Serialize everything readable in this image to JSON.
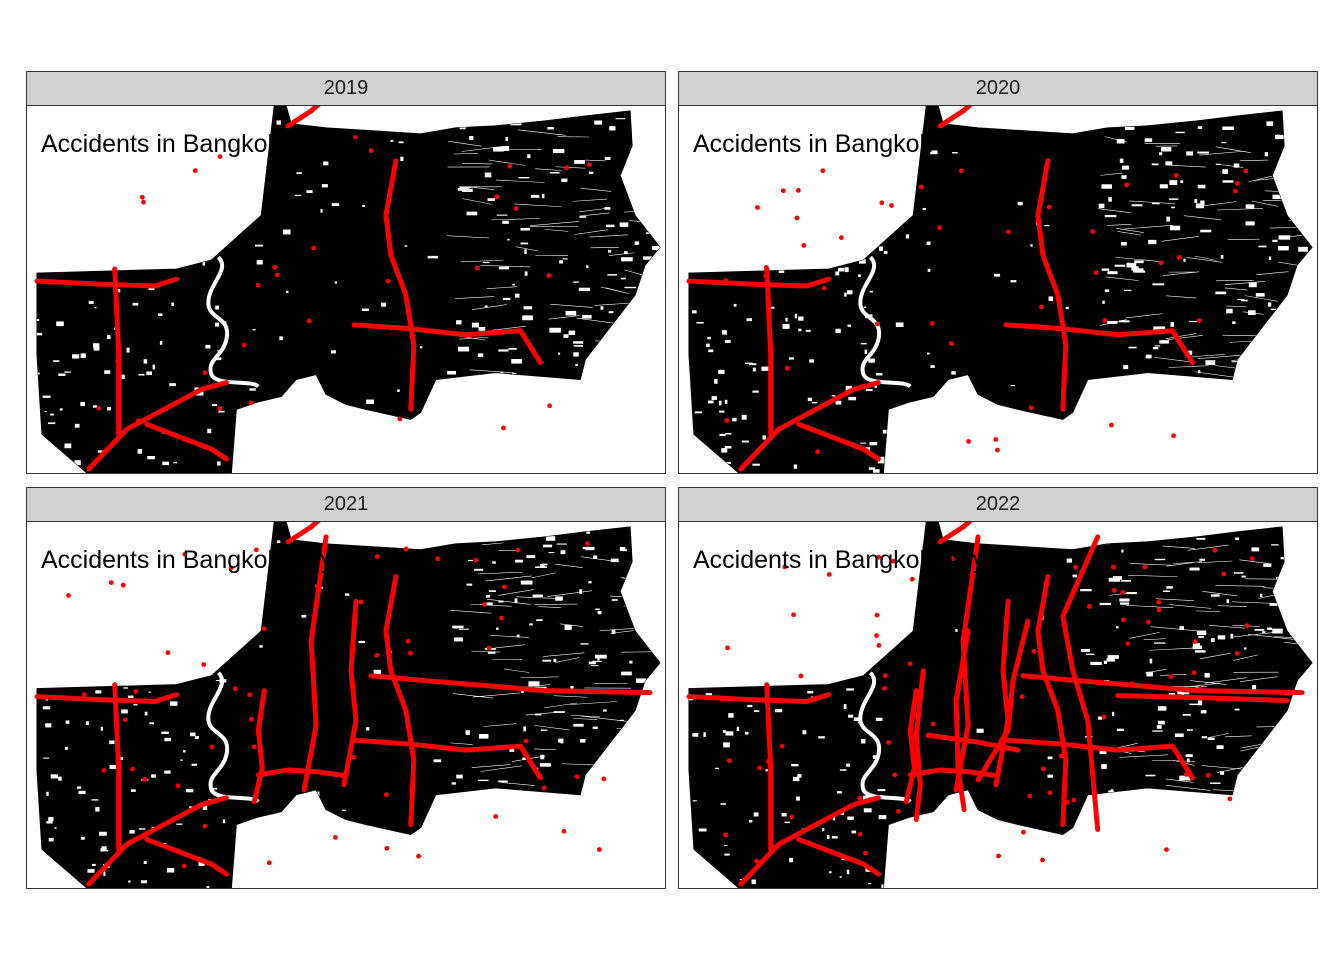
{
  "map_title": "Accidents in Bangkok by year",
  "panels": [
    {
      "year": "2019"
    },
    {
      "year": "2020"
    },
    {
      "year": "2021"
    },
    {
      "year": "2022"
    }
  ],
  "colors": {
    "road_network": "#000000",
    "accident_points": "#ff0000",
    "river": "#ffffff",
    "strip_background": "#d0d0d0",
    "panel_border": "#333333"
  }
}
